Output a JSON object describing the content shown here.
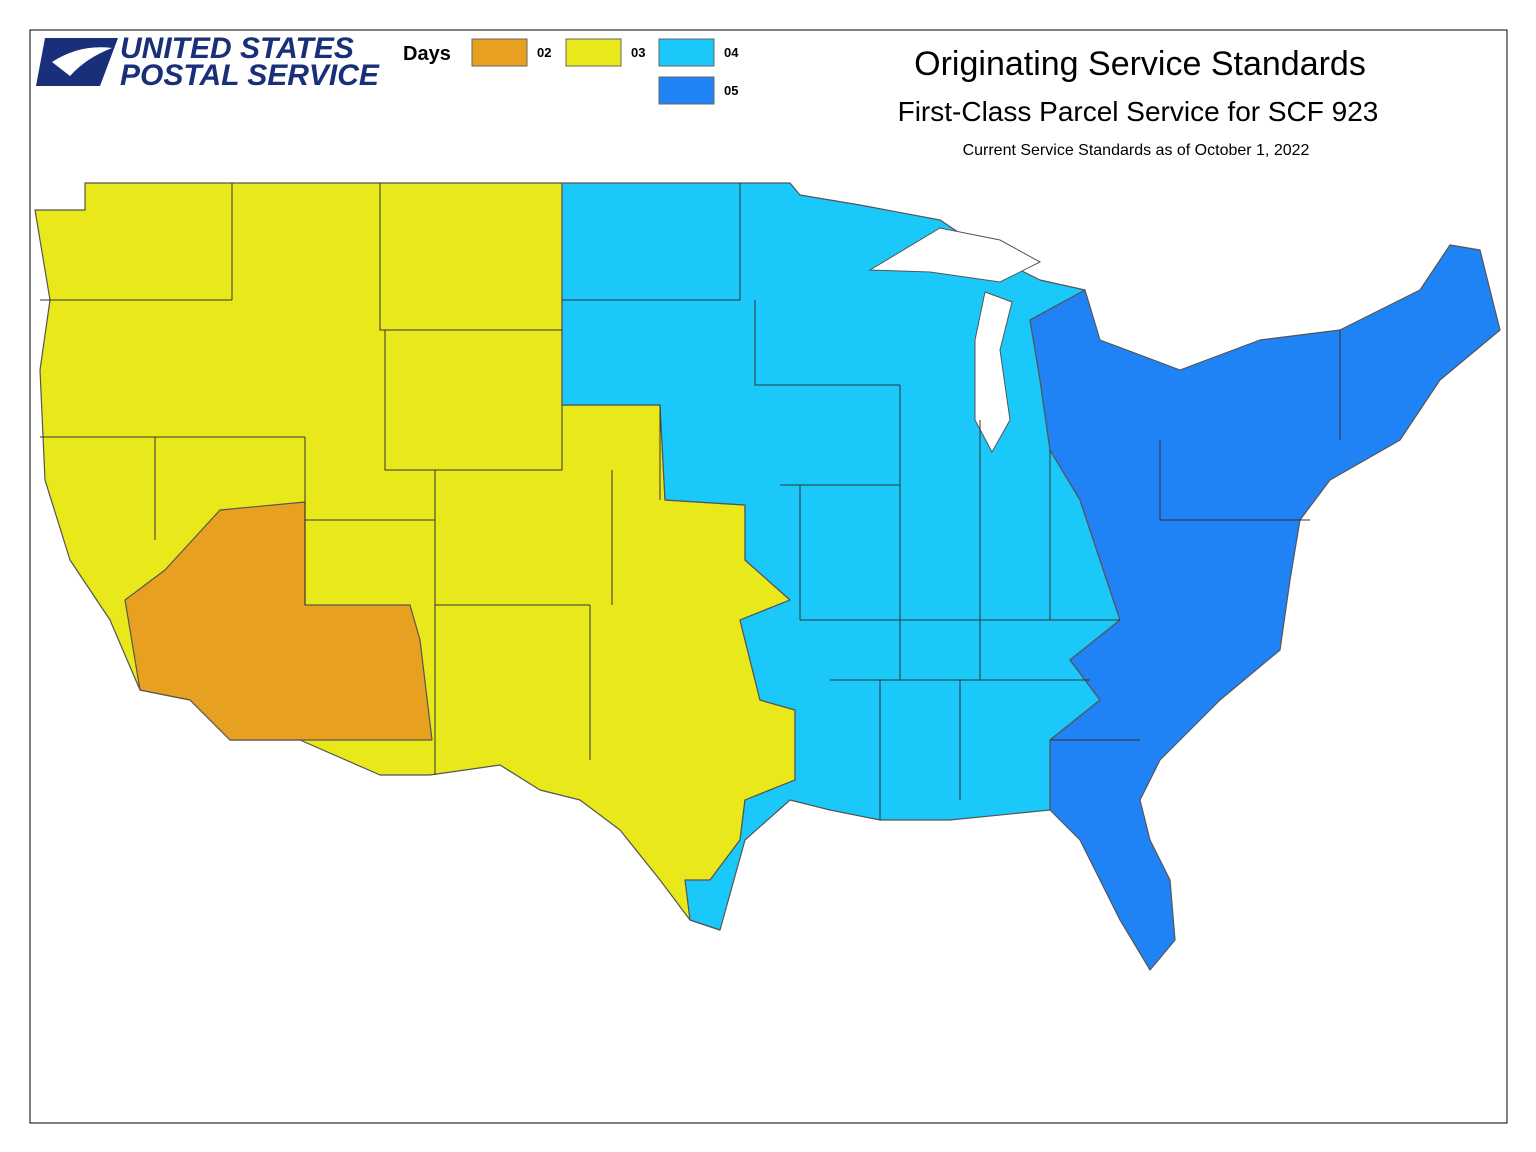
{
  "logo": {
    "line1": "UNITED STATES",
    "line2": "POSTAL SERVICE"
  },
  "legend": {
    "title": "Days",
    "items": [
      {
        "label": "02",
        "color": "#e8a020"
      },
      {
        "label": "03",
        "color": "#e8e81a"
      },
      {
        "label": "04",
        "color": "#1ac8fa"
      },
      {
        "label": "05",
        "color": "#1f82f5"
      }
    ]
  },
  "title": "Originating Service Standards",
  "subtitle": "First-Class Parcel Service for SCF 923",
  "note": "Current Service Standards as of October 1, 2022"
}
